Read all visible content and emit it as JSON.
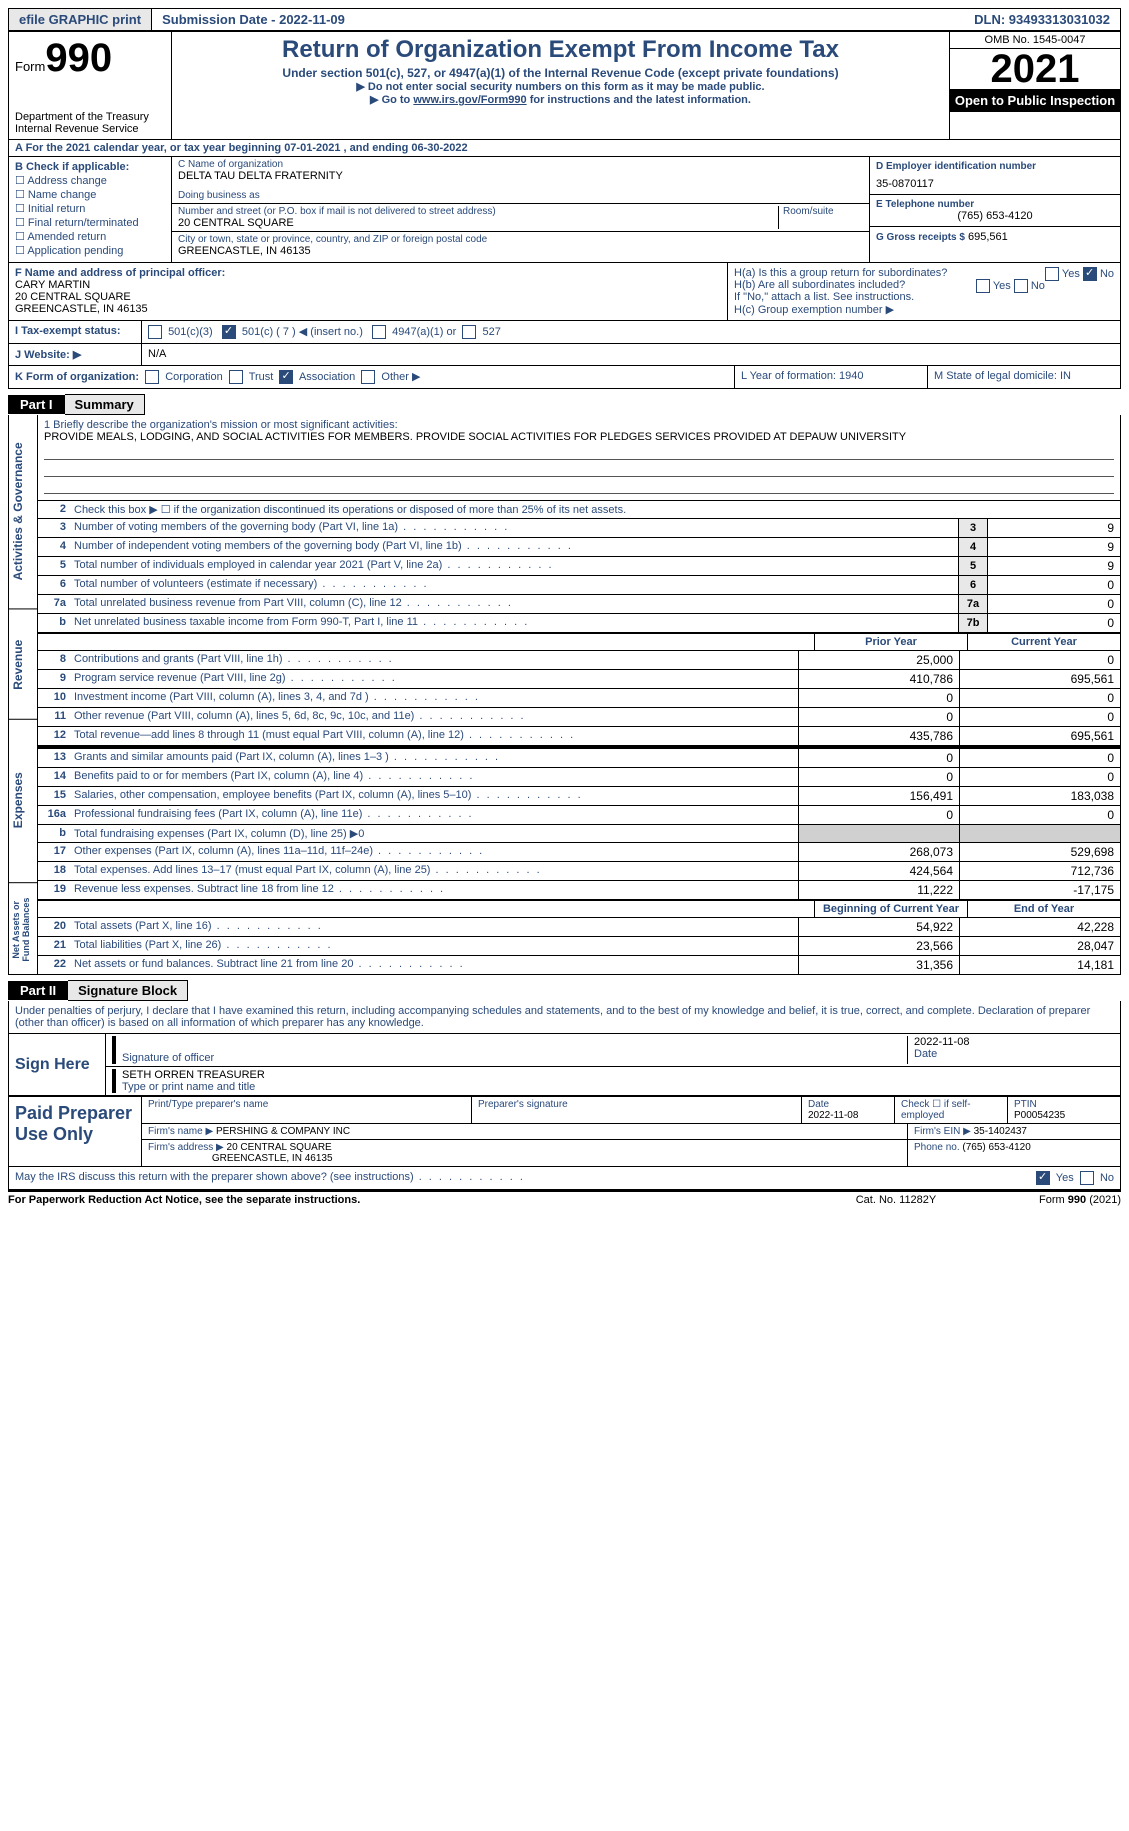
{
  "topbar": {
    "efile": "efile GRAPHIC print",
    "submission": "Submission Date - 2022-11-09",
    "dln": "DLN: 93493313031032"
  },
  "header": {
    "form_label": "Form",
    "form_no": "990",
    "dept1": "Department of the Treasury",
    "dept2": "Internal Revenue Service",
    "title": "Return of Organization Exempt From Income Tax",
    "subtitle": "Under section 501(c), 527, or 4947(a)(1) of the Internal Revenue Code (except private foundations)",
    "instr1": "▶ Do not enter social security numbers on this form as it may be made public.",
    "instr2_pre": "▶ Go to ",
    "instr2_link": "www.irs.gov/Form990",
    "instr2_post": " for instructions and the latest information.",
    "omb": "OMB No. 1545-0047",
    "year": "2021",
    "insp": "Open to Public Inspection"
  },
  "line_a": "A For the 2021 calendar year, or tax year beginning 07-01-2021   , and ending 06-30-2022",
  "col_b": {
    "label": "B Check if applicable:",
    "items": [
      "Address change",
      "Name change",
      "Initial return",
      "Final return/terminated",
      "Amended return",
      "Application pending"
    ]
  },
  "col_c": {
    "name_label": "C Name of organization",
    "name": "DELTA TAU DELTA FRATERNITY",
    "dba_label": "Doing business as",
    "addr_label": "Number and street (or P.O. box if mail is not delivered to street address)",
    "room_label": "Room/suite",
    "addr": "20 CENTRAL SQUARE",
    "city_label": "City or town, state or province, country, and ZIP or foreign postal code",
    "city": "GREENCASTLE, IN  46135"
  },
  "col_d": {
    "ein_label": "D Employer identification number",
    "ein": "35-0870117",
    "tel_label": "E Telephone number",
    "tel": "(765) 653-4120",
    "gross_label": "G Gross receipts $",
    "gross": "695,561"
  },
  "row_f": {
    "label": "F  Name and address of principal officer:",
    "name": "CARY MARTIN",
    "addr1": "20 CENTRAL SQUARE",
    "addr2": "GREENCASTLE, IN  46135"
  },
  "row_h": {
    "ha": "H(a)  Is this a group return for subordinates?",
    "hb": "H(b)  Are all subordinates included?",
    "hb_note": "If \"No,\" attach a list. See instructions.",
    "hc": "H(c)  Group exemption number ▶",
    "yes": "Yes",
    "no": "No"
  },
  "row_i": {
    "label": "I   Tax-exempt status:",
    "o1": "501(c)(3)",
    "o2": "501(c) ( 7 ) ◀ (insert no.)",
    "o3": "4947(a)(1) or",
    "o4": "527"
  },
  "row_j": {
    "label": "J   Website: ▶",
    "val": "N/A"
  },
  "row_k": {
    "label": "K Form of organization:",
    "o1": "Corporation",
    "o2": "Trust",
    "o3": "Association",
    "o4": "Other ▶",
    "l": "L Year of formation: 1940",
    "m": "M State of legal domicile: IN"
  },
  "part1": {
    "tag": "Part I",
    "title": "Summary"
  },
  "mission": {
    "label": "1   Briefly describe the organization's mission or most significant activities:",
    "text": "PROVIDE MEALS, LODGING, AND SOCIAL ACTIVITIES FOR MEMBERS. PROVIDE SOCIAL ACTIVITIES FOR PLEDGES SERVICES PROVIDED AT DEPAUW UNIVERSITY"
  },
  "rot": {
    "ag": "Activities & Governance",
    "rev": "Revenue",
    "exp": "Expenses",
    "na": "Net Assets or Fund Balances"
  },
  "lines_ag": [
    {
      "n": "2",
      "t": "Check this box ▶ ☐  if the organization discontinued its operations or disposed of more than 25% of its net assets."
    },
    {
      "n": "3",
      "t": "Number of voting members of the governing body (Part VI, line 1a)",
      "box": "3",
      "v": "9"
    },
    {
      "n": "4",
      "t": "Number of independent voting members of the governing body (Part VI, line 1b)",
      "box": "4",
      "v": "9"
    },
    {
      "n": "5",
      "t": "Total number of individuals employed in calendar year 2021 (Part V, line 2a)",
      "box": "5",
      "v": "9"
    },
    {
      "n": "6",
      "t": "Total number of volunteers (estimate if necessary)",
      "box": "6",
      "v": "0"
    },
    {
      "n": "7a",
      "t": "Total unrelated business revenue from Part VIII, column (C), line 12",
      "box": "7a",
      "v": "0"
    },
    {
      "n": "b",
      "t": "Net unrelated business taxable income from Form 990-T, Part I, line 11",
      "box": "7b",
      "v": "0"
    }
  ],
  "heads": {
    "py": "Prior Year",
    "cy": "Current Year",
    "boy": "Beginning of Current Year",
    "eoy": "End of Year"
  },
  "lines_rev": [
    {
      "n": "8",
      "t": "Contributions and grants (Part VIII, line 1h)",
      "py": "25,000",
      "cy": "0"
    },
    {
      "n": "9",
      "t": "Program service revenue (Part VIII, line 2g)",
      "py": "410,786",
      "cy": "695,561"
    },
    {
      "n": "10",
      "t": "Investment income (Part VIII, column (A), lines 3, 4, and 7d )",
      "py": "0",
      "cy": "0"
    },
    {
      "n": "11",
      "t": "Other revenue (Part VIII, column (A), lines 5, 6d, 8c, 9c, 10c, and 11e)",
      "py": "0",
      "cy": "0"
    },
    {
      "n": "12",
      "t": "Total revenue—add lines 8 through 11 (must equal Part VIII, column (A), line 12)",
      "py": "435,786",
      "cy": "695,561"
    }
  ],
  "lines_exp": [
    {
      "n": "13",
      "t": "Grants and similar amounts paid (Part IX, column (A), lines 1–3 )",
      "py": "0",
      "cy": "0"
    },
    {
      "n": "14",
      "t": "Benefits paid to or for members (Part IX, column (A), line 4)",
      "py": "0",
      "cy": "0"
    },
    {
      "n": "15",
      "t": "Salaries, other compensation, employee benefits (Part IX, column (A), lines 5–10)",
      "py": "156,491",
      "cy": "183,038"
    },
    {
      "n": "16a",
      "t": "Professional fundraising fees (Part IX, column (A), line 11e)",
      "py": "0",
      "cy": "0"
    },
    {
      "n": "b",
      "t": "Total fundraising expenses (Part IX, column (D), line 25) ▶0",
      "shade": true
    },
    {
      "n": "17",
      "t": "Other expenses (Part IX, column (A), lines 11a–11d, 11f–24e)",
      "py": "268,073",
      "cy": "529,698"
    },
    {
      "n": "18",
      "t": "Total expenses. Add lines 13–17 (must equal Part IX, column (A), line 25)",
      "py": "424,564",
      "cy": "712,736"
    },
    {
      "n": "19",
      "t": "Revenue less expenses. Subtract line 18 from line 12",
      "py": "11,222",
      "cy": "-17,175"
    }
  ],
  "lines_na": [
    {
      "n": "20",
      "t": "Total assets (Part X, line 16)",
      "py": "54,922",
      "cy": "42,228"
    },
    {
      "n": "21",
      "t": "Total liabilities (Part X, line 26)",
      "py": "23,566",
      "cy": "28,047"
    },
    {
      "n": "22",
      "t": "Net assets or fund balances. Subtract line 21 from line 20",
      "py": "31,356",
      "cy": "14,181"
    }
  ],
  "part2": {
    "tag": "Part II",
    "title": "Signature Block"
  },
  "sig": {
    "decl": "Under penalties of perjury, I declare that I have examined this return, including accompanying schedules and statements, and to the best of my knowledge and belief, it is true, correct, and complete. Declaration of preparer (other than officer) is based on all information of which preparer has any knowledge.",
    "sign_here": "Sign Here",
    "sig_officer": "Signature of officer",
    "date": "Date",
    "date_v": "2022-11-08",
    "name": "SETH ORREN  TREASURER",
    "name_label": "Type or print name and title"
  },
  "paid": {
    "label": "Paid Preparer Use Only",
    "h_prep": "Print/Type preparer's name",
    "h_sig": "Preparer's signature",
    "h_date": "Date",
    "h_date_v": "2022-11-08",
    "h_check": "Check ☐ if self-employed",
    "h_ptin": "PTIN",
    "ptin": "P00054235",
    "firm_name_l": "Firm's name      ▶",
    "firm_name": "PERSHING & COMPANY INC",
    "firm_ein_l": "Firm's EIN ▶",
    "firm_ein": "35-1402437",
    "firm_addr_l": "Firm's address ▶",
    "firm_addr1": "20 CENTRAL SQUARE",
    "firm_addr2": "GREENCASTLE, IN  46135",
    "phone_l": "Phone no.",
    "phone": "(765) 653-4120"
  },
  "irs_q": {
    "t": "May the IRS discuss this return with the preparer shown above? (see instructions)",
    "yes": "Yes",
    "no": "No"
  },
  "footer": {
    "l": "For Paperwork Reduction Act Notice, see the separate instructions.",
    "m": "Cat. No. 11282Y",
    "r": "Form 990 (2021)"
  }
}
